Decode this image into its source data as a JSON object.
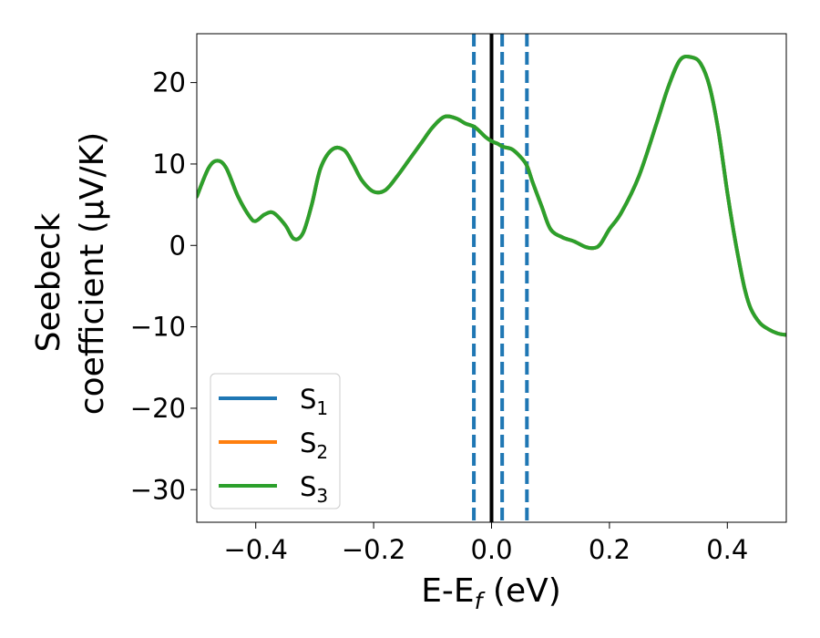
{
  "chart_data": {
    "type": "line",
    "xlabel": "E-E",
    "xlabel_sub": "f",
    "xlabel_unit": " (eV)",
    "ylabel_line1": "Seebeck",
    "ylabel_line2": "coefficient  (μV/K)",
    "xlim": [
      -0.5,
      0.5
    ],
    "ylim": [
      -34,
      26
    ],
    "xticks": [
      -0.4,
      -0.2,
      0.0,
      0.2,
      0.4
    ],
    "xtick_labels": [
      "−0.4",
      "−0.2",
      "0.0",
      "0.2",
      "0.4"
    ],
    "yticks": [
      -30,
      -20,
      -10,
      0,
      10,
      20
    ],
    "ytick_labels": [
      "−30",
      "−20",
      "−10",
      "0",
      "10",
      "20"
    ],
    "grid": false,
    "legend_position": "lower-left",
    "x": [
      -0.5,
      -0.48,
      -0.465,
      -0.45,
      -0.43,
      -0.41,
      -0.4,
      -0.385,
      -0.37,
      -0.35,
      -0.335,
      -0.32,
      -0.305,
      -0.29,
      -0.27,
      -0.25,
      -0.235,
      -0.22,
      -0.2,
      -0.18,
      -0.16,
      -0.14,
      -0.12,
      -0.1,
      -0.08,
      -0.06,
      -0.045,
      -0.03,
      -0.02,
      -0.01,
      0.0,
      0.01,
      0.02,
      0.035,
      0.05,
      0.06,
      0.07,
      0.085,
      0.1,
      0.12,
      0.14,
      0.16,
      0.175,
      0.185,
      0.2,
      0.22,
      0.25,
      0.28,
      0.3,
      0.32,
      0.34,
      0.355,
      0.37,
      0.385,
      0.4,
      0.41,
      0.42,
      0.43,
      0.44,
      0.455,
      0.47,
      0.485,
      0.5
    ],
    "series": [
      {
        "name": "S",
        "name_sub": "1",
        "color": "#1f77b4",
        "values": [
          6.0,
          9.5,
          10.4,
          9.5,
          6.0,
          3.5,
          3.0,
          3.8,
          4.0,
          2.5,
          0.8,
          1.5,
          5.0,
          9.5,
          11.8,
          11.7,
          10.0,
          8.0,
          6.6,
          6.8,
          8.5,
          10.5,
          12.5,
          14.5,
          15.8,
          15.6,
          15.0,
          14.6,
          14.0,
          13.3,
          12.8,
          12.5,
          12.1,
          11.8,
          10.8,
          9.8,
          7.7,
          4.8,
          2.0,
          1.0,
          0.5,
          -0.2,
          -0.3,
          0.2,
          2.0,
          4.0,
          8.5,
          15.0,
          19.5,
          22.8,
          23.1,
          22.3,
          19.5,
          14.0,
          6.5,
          2.0,
          -2.0,
          -5.5,
          -7.8,
          -9.5,
          -10.3,
          -10.8,
          -11.0
        ]
      },
      {
        "name": "S",
        "name_sub": "2",
        "color": "#ff7f0e",
        "values": [
          6.0,
          9.5,
          10.4,
          9.5,
          6.0,
          3.5,
          3.0,
          3.8,
          4.0,
          2.5,
          0.8,
          1.5,
          5.0,
          9.5,
          11.8,
          11.7,
          10.0,
          8.0,
          6.6,
          6.8,
          8.5,
          10.5,
          12.5,
          14.5,
          15.8,
          15.6,
          15.0,
          14.6,
          14.0,
          13.3,
          12.8,
          12.5,
          12.1,
          11.8,
          10.8,
          9.8,
          7.7,
          4.8,
          2.0,
          1.0,
          0.5,
          -0.2,
          -0.3,
          0.2,
          2.0,
          4.0,
          8.5,
          15.0,
          19.5,
          22.8,
          23.1,
          22.3,
          19.5,
          14.0,
          6.5,
          2.0,
          -2.0,
          -5.5,
          -7.8,
          -9.5,
          -10.3,
          -10.8,
          -11.0
        ]
      },
      {
        "name": "S",
        "name_sub": "3",
        "color": "#2ca02c",
        "values": [
          6.0,
          9.5,
          10.4,
          9.5,
          6.0,
          3.5,
          3.0,
          3.8,
          4.0,
          2.5,
          0.8,
          1.5,
          5.0,
          9.5,
          11.8,
          11.7,
          10.0,
          8.0,
          6.6,
          6.8,
          8.5,
          10.5,
          12.5,
          14.5,
          15.8,
          15.6,
          15.0,
          14.6,
          14.0,
          13.3,
          12.8,
          12.5,
          12.1,
          11.8,
          10.8,
          9.8,
          7.7,
          4.8,
          2.0,
          1.0,
          0.5,
          -0.2,
          -0.3,
          0.2,
          2.0,
          4.0,
          8.5,
          15.0,
          19.5,
          22.8,
          23.1,
          22.3,
          19.5,
          14.0,
          6.5,
          2.0,
          -2.0,
          -5.5,
          -7.8,
          -9.5,
          -10.3,
          -10.8,
          -11.0
        ]
      }
    ],
    "reference_lines": {
      "solid": {
        "x": 0.0,
        "color": "#000000"
      },
      "dashed": {
        "x": [
          -0.03,
          0.018,
          0.06
        ],
        "color": "#1f77b4"
      }
    }
  }
}
